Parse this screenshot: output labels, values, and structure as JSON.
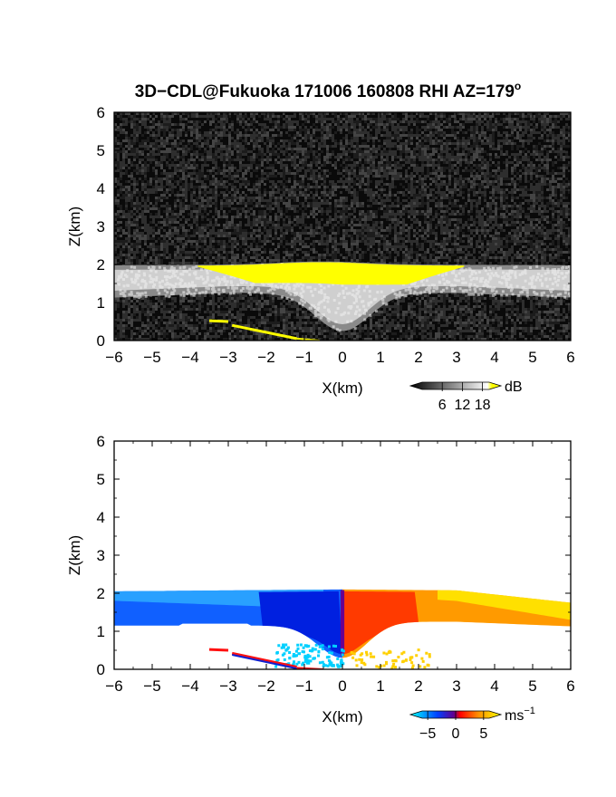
{
  "figure": {
    "title": "3D−CDL@Fukuoka 171006 160808 RHI AZ=179",
    "title_sup": "o"
  },
  "chart_data": [
    {
      "type": "heatmap",
      "panel": "reflectivity",
      "xlabel": "X(km)",
      "ylabel": "Z(km)",
      "xlim": [
        -6,
        6
      ],
      "ylim": [
        0,
        6
      ],
      "xticks": [
        -6,
        -5,
        -4,
        -3,
        -2,
        -1,
        0,
        1,
        2,
        3,
        4,
        5,
        6
      ],
      "yticks": [
        0,
        1,
        2,
        3,
        4,
        5,
        6
      ],
      "background": "noise",
      "colormap": {
        "name": "gray-yellow",
        "unit": "dB",
        "ticks": [
          6,
          12,
          18
        ],
        "range": [
          0,
          20
        ],
        "colors": [
          "#000000",
          "#ffffff",
          "#ffff00"
        ]
      },
      "features": {
        "layer_top_km": 2.0,
        "layer_bottom_km": 1.2,
        "strong_core": {
          "x": [
            -3.8,
            3.2
          ],
          "z": [
            1.2,
            2.05
          ],
          "value_dB": 20
        },
        "dip_center_km": 0.0,
        "dip_bottom_km": 0.2
      }
    },
    {
      "type": "heatmap",
      "panel": "doppler_velocity",
      "xlabel": "X(km)",
      "ylabel": "Z(km)",
      "xlim": [
        -6,
        6
      ],
      "ylim": [
        0,
        6
      ],
      "xticks": [
        -6,
        -5,
        -4,
        -3,
        -2,
        -1,
        0,
        1,
        2,
        3,
        4,
        5,
        6
      ],
      "yticks": [
        0,
        1,
        2,
        3,
        4,
        5,
        6
      ],
      "background": "white",
      "colormap": {
        "name": "blue-red-yellow",
        "unit": "ms",
        "unit_sup": "−1",
        "ticks": [
          -5,
          0,
          5
        ],
        "range": [
          -6,
          6
        ],
        "colors": [
          "#00ffff",
          "#0040ff",
          "#800080",
          "#ff0000",
          "#ffa000",
          "#ffff00"
        ]
      },
      "features": {
        "negative_side": {
          "x": [
            -6,
            0
          ],
          "value_ms": -4
        },
        "positive_side": {
          "x": [
            0,
            6
          ],
          "value_ms": 3
        },
        "layer_top_km": 2.1,
        "layer_bottom_km": 1.2
      }
    }
  ]
}
